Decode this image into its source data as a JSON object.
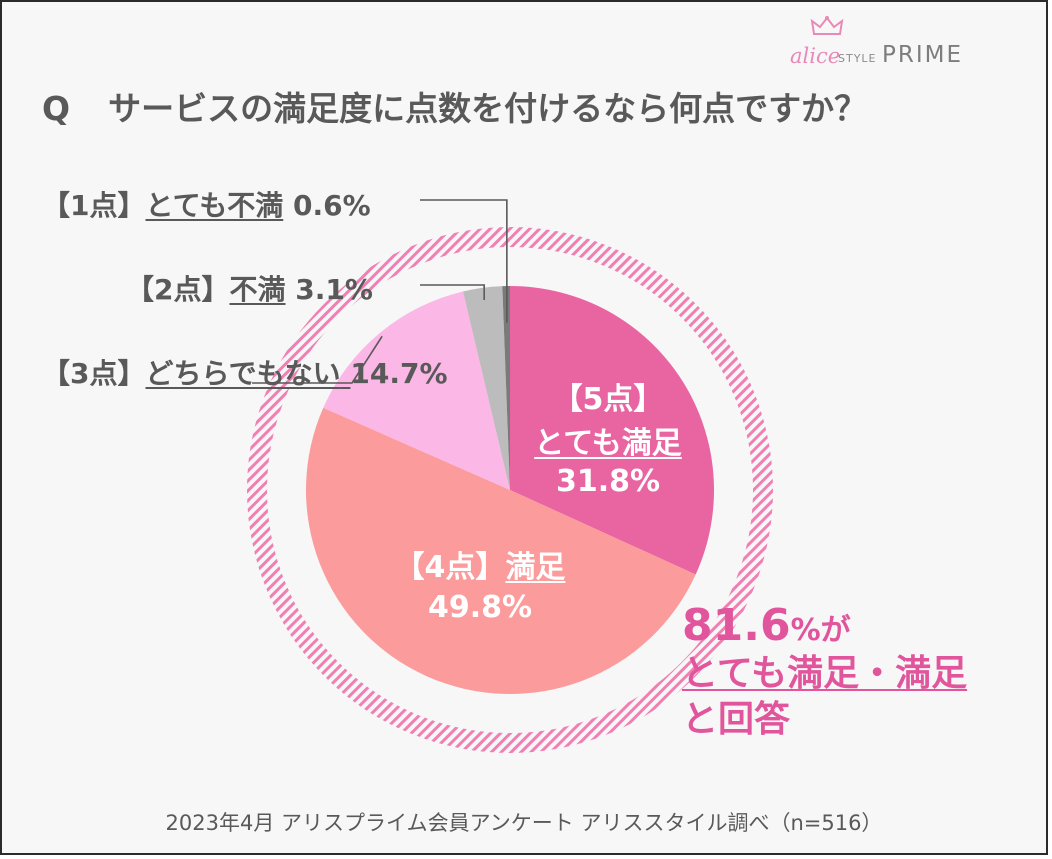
{
  "logo": {
    "part1": "alice",
    "part2": "STYLE",
    "part3": "PRIME"
  },
  "question": {
    "mark": "Q",
    "text": "サービスの満足度に点数を付けるなら何点ですか？"
  },
  "chart_data": {
    "type": "pie",
    "start": "top, clockwise",
    "slices": [
      {
        "label_prefix": "【5点】",
        "label_name": "とても満足",
        "value": 31.8,
        "value_label": "31.8%",
        "color": "#e965a2"
      },
      {
        "label_prefix": "【4点】",
        "label_name": "満足",
        "value": 49.8,
        "value_label": "49.8%",
        "color": "#fb9b9b"
      },
      {
        "label_prefix": "【3点】",
        "label_name": "どちらでもない",
        "value": 14.7,
        "value_label": "14.7%",
        "color": "#fbb7e6"
      },
      {
        "label_prefix": "【2点】",
        "label_name": "不満",
        "value": 3.1,
        "value_label": "3.1%",
        "color": "#bcbcbc"
      },
      {
        "label_prefix": "【1点】",
        "label_name": "とても不満",
        "value": 0.6,
        "value_label": "0.6%",
        "color": "#7a7a7a"
      }
    ]
  },
  "callout": {
    "number": "81.6",
    "suffix": "%が",
    "line2": "とても満足・満足",
    "line3": "と回答"
  },
  "footer": "2023年4月 アリスプライム会員アンケート アリススタイル調べ（n=516）",
  "colors": {
    "accent": "#e0559c",
    "ring": "#f07fb4",
    "text": "#595959",
    "background": "#f7f7f7"
  }
}
